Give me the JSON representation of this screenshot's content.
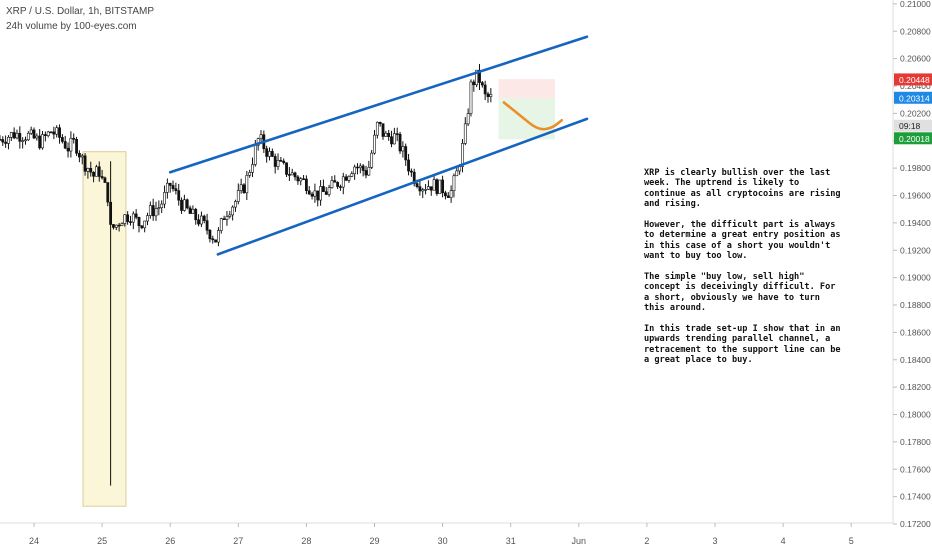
{
  "header": {
    "title": "XRP / U.S. Dollar, 1h, BITSTAMP",
    "subtitle": "24h volume by 100-eyes.com"
  },
  "note": [
    "XRP is clearly bullish over the last week. The uptrend is likely to continue as all cryptocoins are rising and rising.",
    "However, the difficult part is always to determine a great entry position as in this case of a short you wouldn't want to buy too low.",
    "The simple \"buy low, sell high\" concept is deceivingly difficult. For a short, obviously we have to turn this around.",
    "In this trade set-up I show that in an upwards trending parallel channel, a retracement to the support line can be a great place to buy."
  ],
  "chart_data": {
    "type": "candlestick",
    "symbol": "XRP / U.S. Dollar",
    "interval": "1h",
    "exchange": "BITSTAMP",
    "x_ticks": [
      {
        "label": "24",
        "t": 0
      },
      {
        "label": "25",
        "t": 1
      },
      {
        "label": "26",
        "t": 2
      },
      {
        "label": "27",
        "t": 3
      },
      {
        "label": "28",
        "t": 4
      },
      {
        "label": "29",
        "t": 5
      },
      {
        "label": "30",
        "t": 6
      },
      {
        "label": "31",
        "t": 7
      },
      {
        "label": "Jun",
        "t": 8
      },
      {
        "label": "2",
        "t": 9
      },
      {
        "label": "3",
        "t": 10
      },
      {
        "label": "4",
        "t": 11
      },
      {
        "label": "5",
        "t": 12
      }
    ],
    "y_ticks": [
      0.172,
      0.174,
      0.176,
      0.178,
      0.18,
      0.182,
      0.184,
      0.186,
      0.188,
      0.19,
      0.192,
      0.194,
      0.196,
      0.198,
      0.2,
      0.202,
      0.204,
      0.206,
      0.208,
      0.21
    ],
    "y_tick_labels": [
      "0.17200",
      "0.17400",
      "0.17600",
      "0.17800",
      "0.18000",
      "0.18200",
      "0.18400",
      "0.18600",
      "0.18800",
      "0.19000",
      "0.19200",
      "0.19400",
      "0.19600",
      "0.19800",
      "0.20000",
      "0.20200",
      "0.20400",
      "0.20600",
      "0.20800",
      "0.21000"
    ],
    "ylim": [
      0.1715,
      0.2105
    ],
    "xlim": [
      -0.5,
      12.55
    ],
    "price_tags": [
      {
        "value": 0.20448,
        "label": "0.20448",
        "color": "#e53935"
      },
      {
        "value": 0.20314,
        "label": "0.20314",
        "color": "#1e88e5"
      },
      {
        "value": 0.2011,
        "label": "09:18",
        "color": "#e0e0e0",
        "text_color": "#222222"
      },
      {
        "value": 0.20018,
        "label": "0.20018",
        "color": "#1e9e3a"
      }
    ],
    "path_points": [
      [
        -0.5,
        0.2001
      ],
      [
        -0.3,
        0.2005
      ],
      [
        -0.1,
        0.2004
      ],
      [
        0.1,
        0.1999
      ],
      [
        0.25,
        0.2007
      ],
      [
        0.35,
        0.2004
      ],
      [
        0.5,
        0.1995
      ],
      [
        0.6,
        0.1999
      ],
      [
        0.72,
        0.1985
      ],
      [
        0.8,
        0.198
      ],
      [
        0.88,
        0.1974
      ],
      [
        0.95,
        0.1979
      ],
      [
        1.02,
        0.1968
      ],
      [
        1.08,
        0.1962
      ],
      [
        1.12,
        0.1935
      ],
      [
        1.2,
        0.1938
      ],
      [
        1.3,
        0.1944
      ],
      [
        1.42,
        0.1946
      ],
      [
        1.55,
        0.1939
      ],
      [
        1.7,
        0.1948
      ],
      [
        1.85,
        0.1952
      ],
      [
        2.0,
        0.1968
      ],
      [
        2.15,
        0.1955
      ],
      [
        2.3,
        0.1946
      ],
      [
        2.45,
        0.1941
      ],
      [
        2.55,
        0.1935
      ],
      [
        2.68,
        0.1927
      ],
      [
        2.8,
        0.1947
      ],
      [
        2.95,
        0.1955
      ],
      [
        3.1,
        0.1968
      ],
      [
        3.3,
        0.2002
      ],
      [
        3.45,
        0.199
      ],
      [
        3.6,
        0.1982
      ],
      [
        3.8,
        0.1975
      ],
      [
        4.0,
        0.1969
      ],
      [
        4.15,
        0.196
      ],
      [
        4.3,
        0.1963
      ],
      [
        4.5,
        0.1971
      ],
      [
        4.7,
        0.1982
      ],
      [
        4.9,
        0.1977
      ],
      [
        5.05,
        0.2013
      ],
      [
        5.15,
        0.2003
      ],
      [
        5.3,
        0.2003
      ],
      [
        5.45,
        0.1988
      ],
      [
        5.55,
        0.1975
      ],
      [
        5.7,
        0.1967
      ],
      [
        5.85,
        0.1968
      ],
      [
        6.0,
        0.1965
      ],
      [
        6.12,
        0.1962
      ],
      [
        6.22,
        0.1978
      ],
      [
        6.32,
        0.2002
      ],
      [
        6.42,
        0.2041
      ],
      [
        6.52,
        0.2048
      ],
      [
        6.62,
        0.2032
      ],
      [
        6.72,
        0.2031
      ]
    ],
    "spike": {
      "t": 1.12,
      "high": 0.1985,
      "low": 0.1748
    },
    "channel": {
      "upper": {
        "start": [
          2.0,
          0.1977
        ],
        "end": [
          8.12,
          0.2076
        ]
      },
      "lower": {
        "start": [
          2.7,
          0.1917
        ],
        "end": [
          8.12,
          0.2016
        ]
      },
      "color": "#1565c0"
    },
    "highlight_box": {
      "t0": 0.72,
      "t1": 1.35,
      "low": 0.1733,
      "high": 0.1992,
      "fill": "#fbf6d8",
      "stroke": "#d9cf98"
    },
    "trade_box": {
      "t0": 6.82,
      "t1": 7.65,
      "entry": 0.2031,
      "stop": 0.2045,
      "target": 0.2001
    },
    "projection": {
      "points": [
        [
          6.9,
          0.2028
        ],
        [
          7.15,
          0.2018
        ],
        [
          7.4,
          0.2008
        ],
        [
          7.6,
          0.2009
        ],
        [
          7.75,
          0.2015
        ]
      ],
      "color": "#e8902a"
    },
    "colors": {
      "up": "#111111",
      "down": "#111111",
      "up_body": "#ffffff",
      "down_body": "#111111",
      "axis": "#dddddd",
      "text": "#555555"
    }
  }
}
